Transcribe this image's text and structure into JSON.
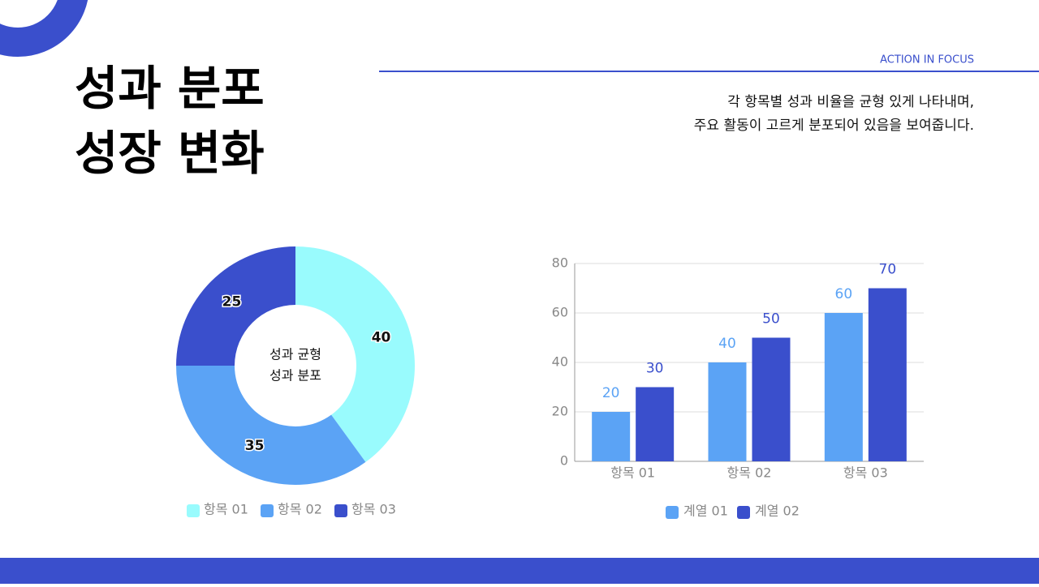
{
  "header": {
    "tag": "ACTION IN FOCUS",
    "title_lines": [
      "성과 분포",
      "성장 변화"
    ],
    "description_lines": [
      "각 항목별 성과 비율을 균형 있게 나타내며,",
      "주요 활동이 고르게 분포되어 있음을 보여줍니다."
    ]
  },
  "chart_data": [
    {
      "type": "donut",
      "center_text": [
        "성과 균형",
        "성과 분포"
      ],
      "categories": [
        "항목 01",
        "항목 02",
        "항목 03"
      ],
      "values": [
        40,
        35,
        25
      ],
      "colors": [
        "#99fbfd",
        "#5ba3f5",
        "#3a4fcc"
      ]
    },
    {
      "type": "bar",
      "categories": [
        "항목 01",
        "항목 02",
        "항목 03"
      ],
      "series": [
        {
          "name": "계열 01",
          "color": "#5ba3f5",
          "values": [
            20,
            40,
            60
          ]
        },
        {
          "name": "계열 02",
          "color": "#3a4fcc",
          "values": [
            30,
            50,
            70
          ]
        }
      ],
      "ylim": [
        0,
        80
      ],
      "yticks": [
        0,
        20,
        40,
        60,
        80
      ],
      "grid": true
    }
  ]
}
